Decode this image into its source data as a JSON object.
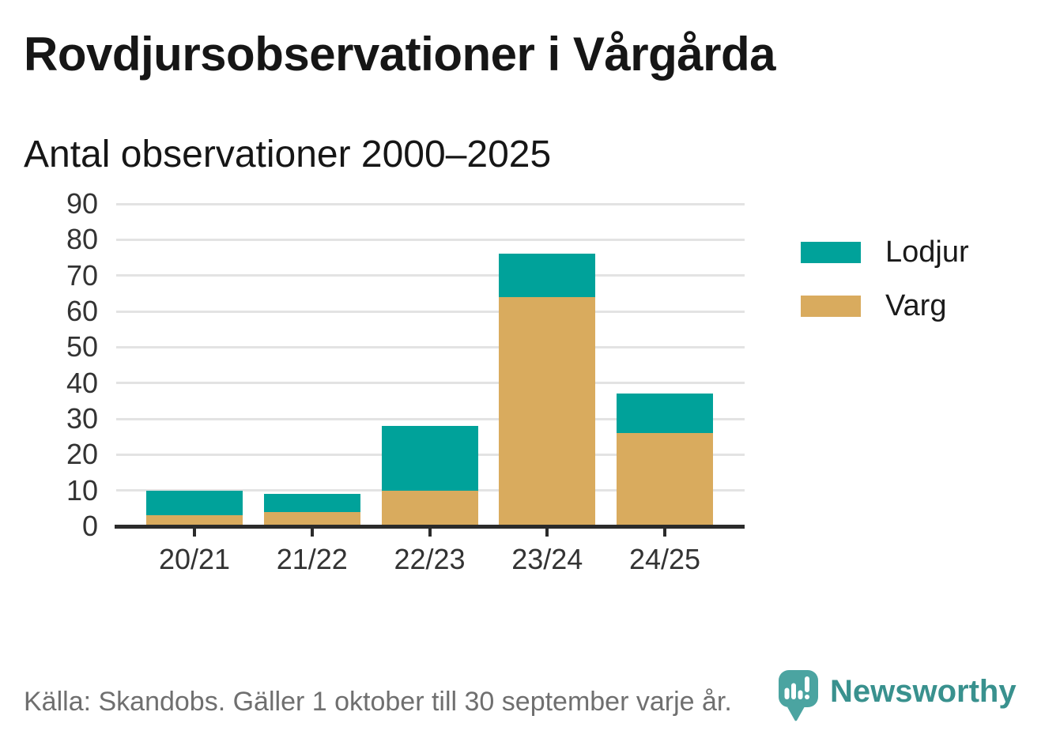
{
  "header": {
    "title": "Rovdjursobservationer i Vårgårda",
    "subtitle": "Antal observationer 2000–2025"
  },
  "chart_data": {
    "type": "bar",
    "stacked": true,
    "title": "Rovdjursobservationer i Vårgårda",
    "subtitle": "Antal observationer 2000–2025",
    "categories": [
      "20/21",
      "21/22",
      "22/23",
      "23/24",
      "24/25"
    ],
    "series": [
      {
        "name": "Lodjur",
        "color": "#00a29a",
        "values": [
          7,
          5,
          18,
          12,
          11
        ]
      },
      {
        "name": "Varg",
        "color": "#d9ab5e",
        "values": [
          3,
          4,
          10,
          64,
          26
        ]
      }
    ],
    "stack_bottom_to_top": [
      "Varg",
      "Lodjur"
    ],
    "totals": [
      10,
      9,
      28,
      76,
      37
    ],
    "xlabel": "",
    "ylabel": "",
    "ylim": [
      0,
      90
    ],
    "yticks": [
      0,
      10,
      20,
      30,
      40,
      50,
      60,
      70,
      80,
      90
    ],
    "grid": "horizontal",
    "legend_position": "right"
  },
  "footer": {
    "source": "Källa: Skandobs. Gäller 1 oktober till 30 september varje år.",
    "brand": "Newsworthy"
  },
  "colors": {
    "lodjur": "#00a29a",
    "varg": "#d9ab5e",
    "gridline": "#e3e3e3",
    "baseline": "#2b2b2b",
    "axis_text": "#333333",
    "title_text": "#161616",
    "footer_text": "#6f6f6f",
    "brand_teal": "#39918e",
    "logo_bubble": "#4ba4a1"
  }
}
